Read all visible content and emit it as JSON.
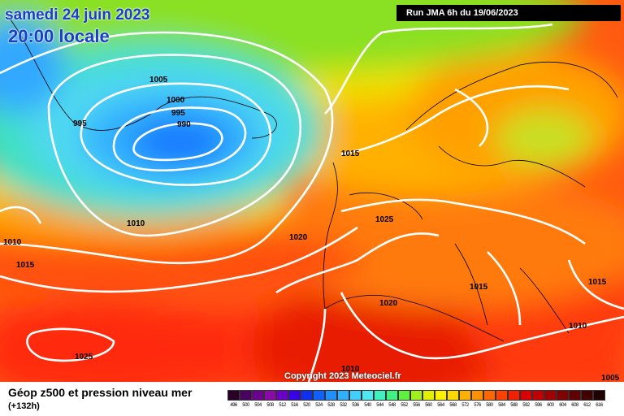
{
  "header": {
    "date": "samedi 24 juin 2023",
    "time": "20:00 locale",
    "run": "Run JMA 6h du 19/06/2023"
  },
  "copyright": "Copyright 2023 Meteociel.fr",
  "footer": {
    "title": "Géop z500 et pression niveau mer",
    "subtitle": "(+132h)"
  },
  "isobar_labels": [
    "1005",
    "1000",
    "995",
    "990",
    "995",
    "1015",
    "1025",
    "1020",
    "1010",
    "1010",
    "1015",
    "1020",
    "1015",
    "1015",
    "1010",
    "1025",
    "1010",
    "1005"
  ],
  "legend": {
    "values": [
      "496",
      "500",
      "504",
      "508",
      "512",
      "516",
      "520",
      "524",
      "528",
      "532",
      "536",
      "540",
      "544",
      "548",
      "552",
      "556",
      "560",
      "564",
      "568",
      "572",
      "576",
      "580",
      "584",
      "588",
      "592",
      "596",
      "600",
      "604",
      "608",
      "612",
      "616"
    ],
    "colors": [
      "#2b0026",
      "#4a0060",
      "#6c0090",
      "#8a0aa8",
      "#6a00c8",
      "#3a00e6",
      "#1030f0",
      "#1060ff",
      "#2090ff",
      "#30b0ff",
      "#40d0ff",
      "#50e8f0",
      "#40f0c0",
      "#40f080",
      "#60f040",
      "#a0f020",
      "#e0f000",
      "#fff000",
      "#ffd800",
      "#ffb000",
      "#ff9000",
      "#ff6800",
      "#ff4000",
      "#f02000",
      "#d80000",
      "#c00000",
      "#a00000",
      "#800000",
      "#600000",
      "#400000",
      "#200000"
    ]
  }
}
